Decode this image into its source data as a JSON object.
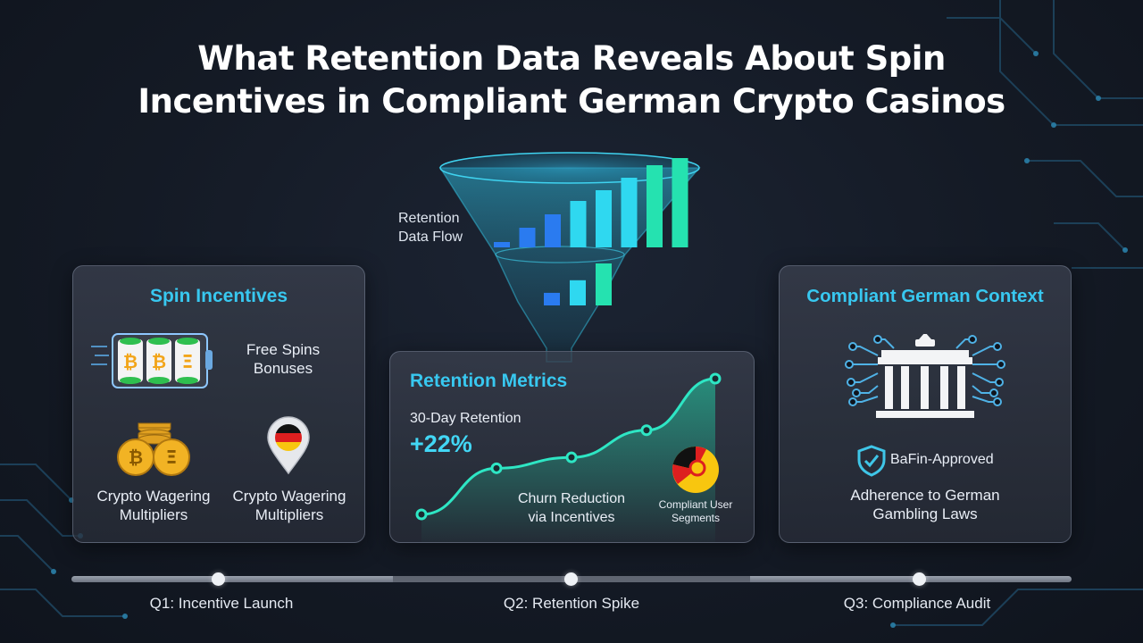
{
  "title": {
    "line1": "What Retention Data Reveals About Spin",
    "line2": "Incentives in Compliant German Crypto Casinos"
  },
  "funnel": {
    "label_line1": "Retention",
    "label_line2": "Data Flow",
    "top_bar_levels": [
      0.05,
      0.22,
      0.37,
      0.52,
      0.64,
      0.78,
      0.92,
      1.0
    ],
    "bottom_bar_levels": [
      0.3,
      0.6,
      1.0
    ],
    "colors": {
      "cyan": "#2fd8f0",
      "teal": "#25e2b0",
      "blue": "#2a7bf0"
    }
  },
  "spin_card": {
    "title": "Spin Incentives",
    "slot_text_line1": "Free Spins",
    "slot_text_line2": "Bonuses",
    "coins_label_line1": "Crypto Wagering",
    "coins_label_line2": "Multipliers",
    "pin_label_line1": "Crypto Wagering",
    "pin_label_line2": "Multipliers",
    "reel_symbols": [
      "₿",
      "₿",
      "Ξ"
    ],
    "coin_symbols": [
      "₿",
      "Ξ"
    ]
  },
  "metrics_card": {
    "title": "Retention Metrics",
    "metric_label": "30-Day Retention",
    "metric_value": "+22%",
    "churn_line1": "Churn Reduction",
    "churn_line2": "via Incentives",
    "segments_line1": "Compliant User",
    "segments_line2": "Segments",
    "curve_levels": [
      0.0,
      0.34,
      0.42,
      0.62,
      1.0
    ]
  },
  "compliance_card": {
    "title": "Compliant German Context",
    "badge_text": "BaFin-Approved",
    "law_line1": "Adherence to German",
    "law_line2": "Gambling Laws"
  },
  "timeline": {
    "items": [
      {
        "label": "Q1: Incentive Launch"
      },
      {
        "label": "Q2: Retention Spike"
      },
      {
        "label": "Q3: Compliance Audit"
      }
    ]
  }
}
